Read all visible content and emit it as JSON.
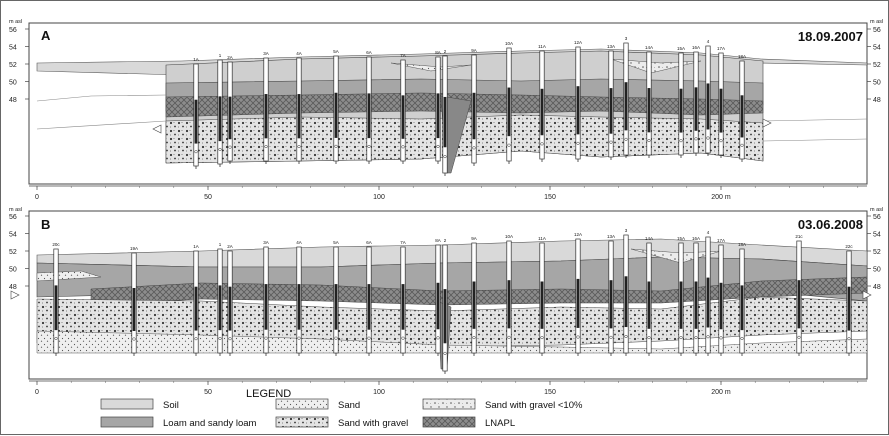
{
  "panels": [
    {
      "letter": "A",
      "date": "18.09.2007",
      "unit_left": "m asl",
      "unit_right": "m asl",
      "y_ticks": [
        "56",
        "54",
        "52",
        "50",
        "48"
      ],
      "x_ticks": [
        "0",
        "50",
        "100",
        "150",
        "200 m"
      ],
      "wells": [
        "1A",
        "1",
        "2A",
        "3A",
        "4A",
        "5A",
        "6A",
        "7A",
        "8A",
        "2",
        "9A",
        "10A",
        "11A",
        "12A",
        "13A",
        "3",
        "14A",
        "15A",
        "16A",
        "4",
        "17A",
        "18A"
      ]
    },
    {
      "letter": "B",
      "date": "03.06.2008",
      "unit_left": "m asl",
      "unit_right": "m asl",
      "y_ticks": [
        "56",
        "54",
        "52",
        "50",
        "48"
      ],
      "x_ticks": [
        "0",
        "50",
        "100",
        "150",
        "200 m"
      ],
      "wells": [
        "20c",
        "19A",
        "1A",
        "1",
        "2A",
        "3A",
        "4A",
        "5A",
        "6A",
        "7A",
        "8A",
        "2",
        "9A",
        "10A",
        "11A",
        "12A",
        "13A",
        "3",
        "14A",
        "15A",
        "16A",
        "4",
        "17A",
        "18A",
        "21c",
        "22c"
      ]
    }
  ],
  "legend": {
    "title": "LEGEND",
    "items": [
      {
        "label": "Soil",
        "fill": "#d9d9d9"
      },
      {
        "label": "Loam and sandy loam",
        "fill": "#a6a6a6"
      },
      {
        "label": "Sand",
        "fill": "pattern-sand"
      },
      {
        "label": "Sand with gravel",
        "fill": "pattern-gravel"
      },
      {
        "label": "Sand with gravel <10%",
        "fill": "pattern-gravel-light"
      },
      {
        "label": "LNAPL",
        "fill": "pattern-lnapl"
      }
    ]
  }
}
